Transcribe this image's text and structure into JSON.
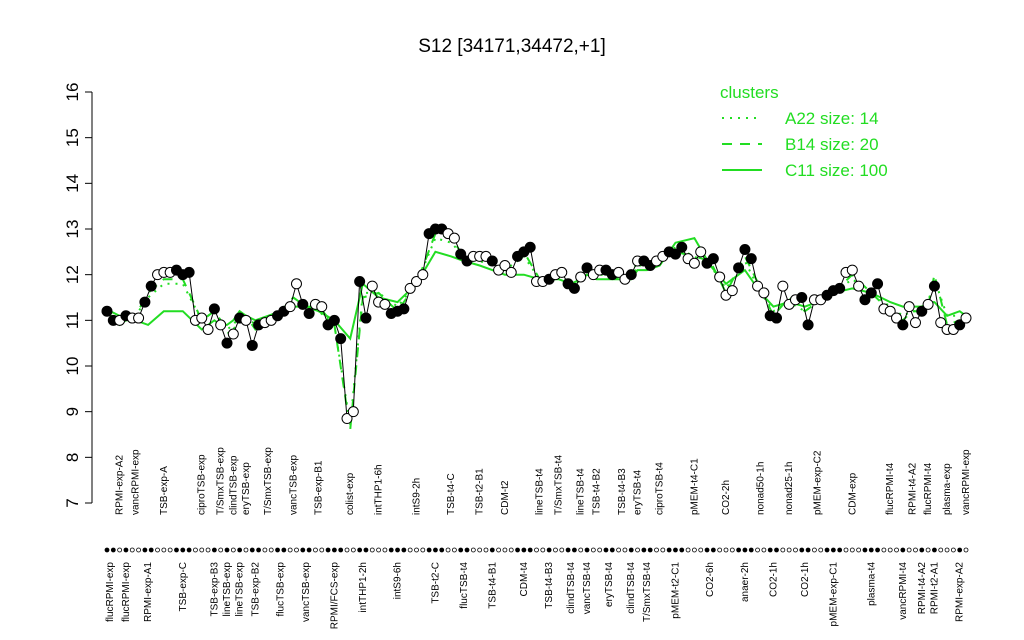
{
  "chart_data": {
    "type": "cluster-profile",
    "title": "S12 [34171,34472,+1]",
    "ylim": [
      7,
      16
    ],
    "yticks": [
      7,
      8,
      9,
      10,
      11,
      12,
      13,
      14,
      15,
      16
    ],
    "point_colors": [
      "#000000",
      "#ffffff"
    ],
    "legend_title": "clusters",
    "legend_position": "top-right",
    "groups": [
      {
        "label": "flucRPMI-exp",
        "values": [
          11.2,
          11.0
        ]
      },
      {
        "label": "RPMI-exp-A2",
        "values": [
          11.0
        ]
      },
      {
        "label": "flucRPMI-exp",
        "values": [
          11.1
        ]
      },
      {
        "label": "vancRPMI-exp",
        "values": [
          11.05,
          11.05
        ]
      },
      {
        "label": "RPMI-exp-A1",
        "values": [
          11.4,
          11.75
        ]
      },
      {
        "label": "TSB-exp-A",
        "values": [
          12.0,
          12.05,
          12.05
        ]
      },
      {
        "label": "TSB-exp-C",
        "values": [
          12.1,
          12.0,
          12.05
        ]
      },
      {
        "label": "ciproTSB-exp",
        "values": [
          11.0,
          11.05,
          10.8
        ]
      },
      {
        "label": "TSB-exp-B3",
        "values": [
          11.25
        ]
      },
      {
        "label": "T/SmxTSB-exp",
        "values": [
          10.9
        ]
      },
      {
        "label": "lineTSB-exp",
        "values": [
          10.5
        ]
      },
      {
        "label": "clindTSB-exp",
        "values": [
          10.7
        ]
      },
      {
        "label": "lineTSB-exp",
        "values": [
          11.05
        ]
      },
      {
        "label": "eryTSB-exp",
        "values": [
          11.0
        ]
      },
      {
        "label": "TSB-exp-B2",
        "values": [
          10.45,
          10.9
        ]
      },
      {
        "label": "T/SmxTSB-exp",
        "values": [
          10.95,
          11.0
        ]
      },
      {
        "label": "flucTSB-exp",
        "values": [
          11.1,
          11.2
        ]
      },
      {
        "label": "vancTSB-exp",
        "values": [
          11.3,
          11.8
        ]
      },
      {
        "label": "vancTSB-exp",
        "values": [
          11.35,
          11.15
        ]
      },
      {
        "label": "TSB-exp-B1",
        "values": [
          11.35,
          11.3
        ]
      },
      {
        "label": "RPMI/FCS-exp",
        "values": [
          10.9,
          11.0,
          10.6
        ]
      },
      {
        "label": "colist-exp",
        "values": [
          8.85,
          9.0
        ]
      },
      {
        "label": "intTHP1-2h",
        "values": [
          11.85,
          11.05
        ]
      },
      {
        "label": "intTHP1-6h",
        "values": [
          11.75,
          11.4,
          11.35
        ]
      },
      {
        "label": "intS9-6h",
        "values": [
          11.15,
          11.2,
          11.25
        ]
      },
      {
        "label": "intS9-2h",
        "values": [
          11.7,
          11.85,
          12.0
        ]
      },
      {
        "label": "TSB-t2-C",
        "values": [
          12.9,
          13.0,
          13.0
        ]
      },
      {
        "label": "TSB-t4-C",
        "values": [
          12.9,
          12.8
        ]
      },
      {
        "label": "flucTSB-t4",
        "values": [
          12.45,
          12.3
        ]
      },
      {
        "label": "TSB-t2-B1",
        "values": [
          12.4,
          12.4,
          12.4
        ]
      },
      {
        "label": "TSB-t4-B1",
        "values": [
          12.3
        ]
      },
      {
        "label": "CDM-t2",
        "values": [
          12.1,
          12.2,
          12.05
        ]
      },
      {
        "label": "CDM-t4",
        "values": [
          12.4,
          12.5,
          12.6
        ]
      },
      {
        "label": "lineTSB-t4",
        "values": [
          11.85,
          11.85
        ]
      },
      {
        "label": "TSB-t4-B3",
        "values": [
          11.9
        ]
      },
      {
        "label": "T/SmxTSB-t4",
        "values": [
          12.0,
          12.05
        ]
      },
      {
        "label": "clindTSB-t4",
        "values": [
          11.8,
          11.7
        ]
      },
      {
        "label": "lineTSB-t4",
        "values": [
          11.95
        ]
      },
      {
        "label": "vancTSB-t4",
        "values": [
          12.15
        ]
      },
      {
        "label": "TSB-t4-B2",
        "values": [
          12.0,
          12.1
        ]
      },
      {
        "label": "eryTSB-t4",
        "values": [
          12.1,
          12.0
        ]
      },
      {
        "label": "TSB-t4-B3",
        "values": [
          12.05,
          11.9
        ]
      },
      {
        "label": "clindTSB-t4",
        "values": [
          12.0
        ]
      },
      {
        "label": "eryTSB-t4",
        "values": [
          12.3
        ]
      },
      {
        "label": "T/SmxTSB-t4",
        "values": [
          12.3,
          12.2
        ]
      },
      {
        "label": "ciproTSB-t4",
        "values": [
          12.3,
          12.4
        ]
      },
      {
        "label": "pMEM-t2-C1",
        "values": [
          12.5,
          12.45,
          12.6
        ]
      },
      {
        "label": "pMEM-t4-C1",
        "values": [
          12.35,
          12.25,
          12.5
        ]
      },
      {
        "label": "CO2-6h",
        "values": [
          12.25,
          12.35
        ]
      },
      {
        "label": "CO2-2h",
        "values": [
          11.95,
          11.55,
          11.65
        ]
      },
      {
        "label": "anaer-2h",
        "values": [
          12.15,
          12.55,
          12.35
        ]
      },
      {
        "label": "nonad50-1h",
        "values": [
          11.75,
          11.6
        ]
      },
      {
        "label": "CO2-1h",
        "values": [
          11.1,
          11.05
        ]
      },
      {
        "label": "nonad25-1h",
        "values": [
          11.75,
          11.35,
          11.45
        ]
      },
      {
        "label": "CO2-1h",
        "values": [
          11.5,
          10.9
        ]
      },
      {
        "label": "pMEM-exp-C2",
        "values": [
          11.45,
          11.45
        ]
      },
      {
        "label": "pMEM-exp-C1",
        "values": [
          11.55,
          11.65,
          11.7
        ]
      },
      {
        "label": "CDM-exp",
        "values": [
          12.05,
          12.1,
          11.75
        ]
      },
      {
        "label": "plasma-t4",
        "values": [
          11.45,
          11.6,
          11.8
        ]
      },
      {
        "label": "flucRPMI-t4",
        "values": [
          11.25,
          11.2,
          11.05
        ]
      },
      {
        "label": "vancRPMI-t4",
        "values": [
          10.9
        ]
      },
      {
        "label": "RPMI-t4-A2",
        "values": [
          11.3,
          10.95
        ]
      },
      {
        "label": "RPMI-t4-A2",
        "values": [
          11.2
        ]
      },
      {
        "label": "flucRPMI-t4",
        "values": [
          11.35
        ]
      },
      {
        "label": "RPMI-t2-A1",
        "values": [
          11.75
        ]
      },
      {
        "label": "plasma-exp",
        "values": [
          10.95,
          10.8,
          10.8
        ]
      },
      {
        "label": "RPMI-exp-A2",
        "values": [
          10.9
        ]
      },
      {
        "label": "vancRPMI-exp",
        "values": [
          11.05
        ]
      }
    ],
    "series": [
      {
        "name": "A22 size: 14",
        "color": "#22dd22",
        "style": "dotted",
        "values": [
          11.1,
          11.1,
          11.1,
          11.1,
          11.5,
          11.8,
          11.8,
          11.0,
          11.2,
          11.0,
          10.8,
          10.9,
          11.1,
          11.1,
          10.9,
          11.0,
          11.1,
          11.4,
          11.3,
          11.2,
          10.9,
          8.7,
          11.6,
          11.6,
          11.3,
          11.8,
          12.8,
          12.7,
          12.4,
          12.3,
          12.2,
          12.1,
          12.4,
          11.9,
          11.9,
          12.0,
          11.8,
          11.9,
          12.0,
          12.0,
          12.0,
          11.9,
          11.9,
          12.2,
          12.2,
          12.3,
          12.6,
          12.4,
          12.2,
          11.7,
          12.3,
          11.6,
          11.2,
          11.4,
          11.2,
          11.4,
          11.6,
          11.9,
          11.6,
          11.3,
          11.1,
          11.2,
          11.2,
          11.4,
          11.9,
          11.1,
          11.1,
          11.1
        ]
      },
      {
        "name": "B14 size: 20",
        "color": "#22dd22",
        "style": "dashed",
        "values": [
          11.2,
          11.1,
          11.1,
          11.1,
          11.6,
          11.9,
          11.9,
          11.0,
          11.2,
          11.0,
          10.7,
          10.8,
          11.0,
          11.1,
          10.8,
          11.0,
          11.2,
          11.5,
          11.3,
          11.3,
          10.9,
          8.6,
          11.5,
          11.6,
          11.2,
          11.8,
          12.9,
          12.8,
          12.4,
          12.4,
          12.3,
          12.1,
          12.5,
          11.9,
          11.9,
          12.0,
          11.7,
          11.9,
          12.1,
          12.0,
          12.0,
          11.9,
          12.0,
          12.3,
          12.2,
          12.3,
          12.5,
          12.4,
          12.3,
          11.6,
          12.4,
          11.7,
          11.1,
          11.5,
          11.2,
          11.4,
          11.6,
          12.0,
          11.6,
          11.2,
          11.0,
          11.2,
          11.2,
          11.3,
          12.0,
          10.9,
          11.0,
          11.0
        ]
      },
      {
        "name": "C11 size: 100",
        "color": "#22dd22",
        "style": "solid",
        "values": [
          11.1,
          10.9,
          11.0,
          11.0,
          10.9,
          11.2,
          11.2,
          10.8,
          11.0,
          10.9,
          10.9,
          11.0,
          11.2,
          11.1,
          11.0,
          11.1,
          11.2,
          11.3,
          11.3,
          11.2,
          11.0,
          10.6,
          11.8,
          11.5,
          11.4,
          11.8,
          12.5,
          12.4,
          12.3,
          12.2,
          12.1,
          12.0,
          12.0,
          11.9,
          11.9,
          11.9,
          11.8,
          11.9,
          12.0,
          11.9,
          11.9,
          11.9,
          11.9,
          12.1,
          12.1,
          12.2,
          12.7,
          12.8,
          12.2,
          11.8,
          12.1,
          11.6,
          11.3,
          11.4,
          11.3,
          11.4,
          11.6,
          11.7,
          11.6,
          11.4,
          11.3,
          11.3,
          11.3,
          11.4,
          11.4,
          11.1,
          11.2,
          11.1
        ]
      }
    ]
  }
}
